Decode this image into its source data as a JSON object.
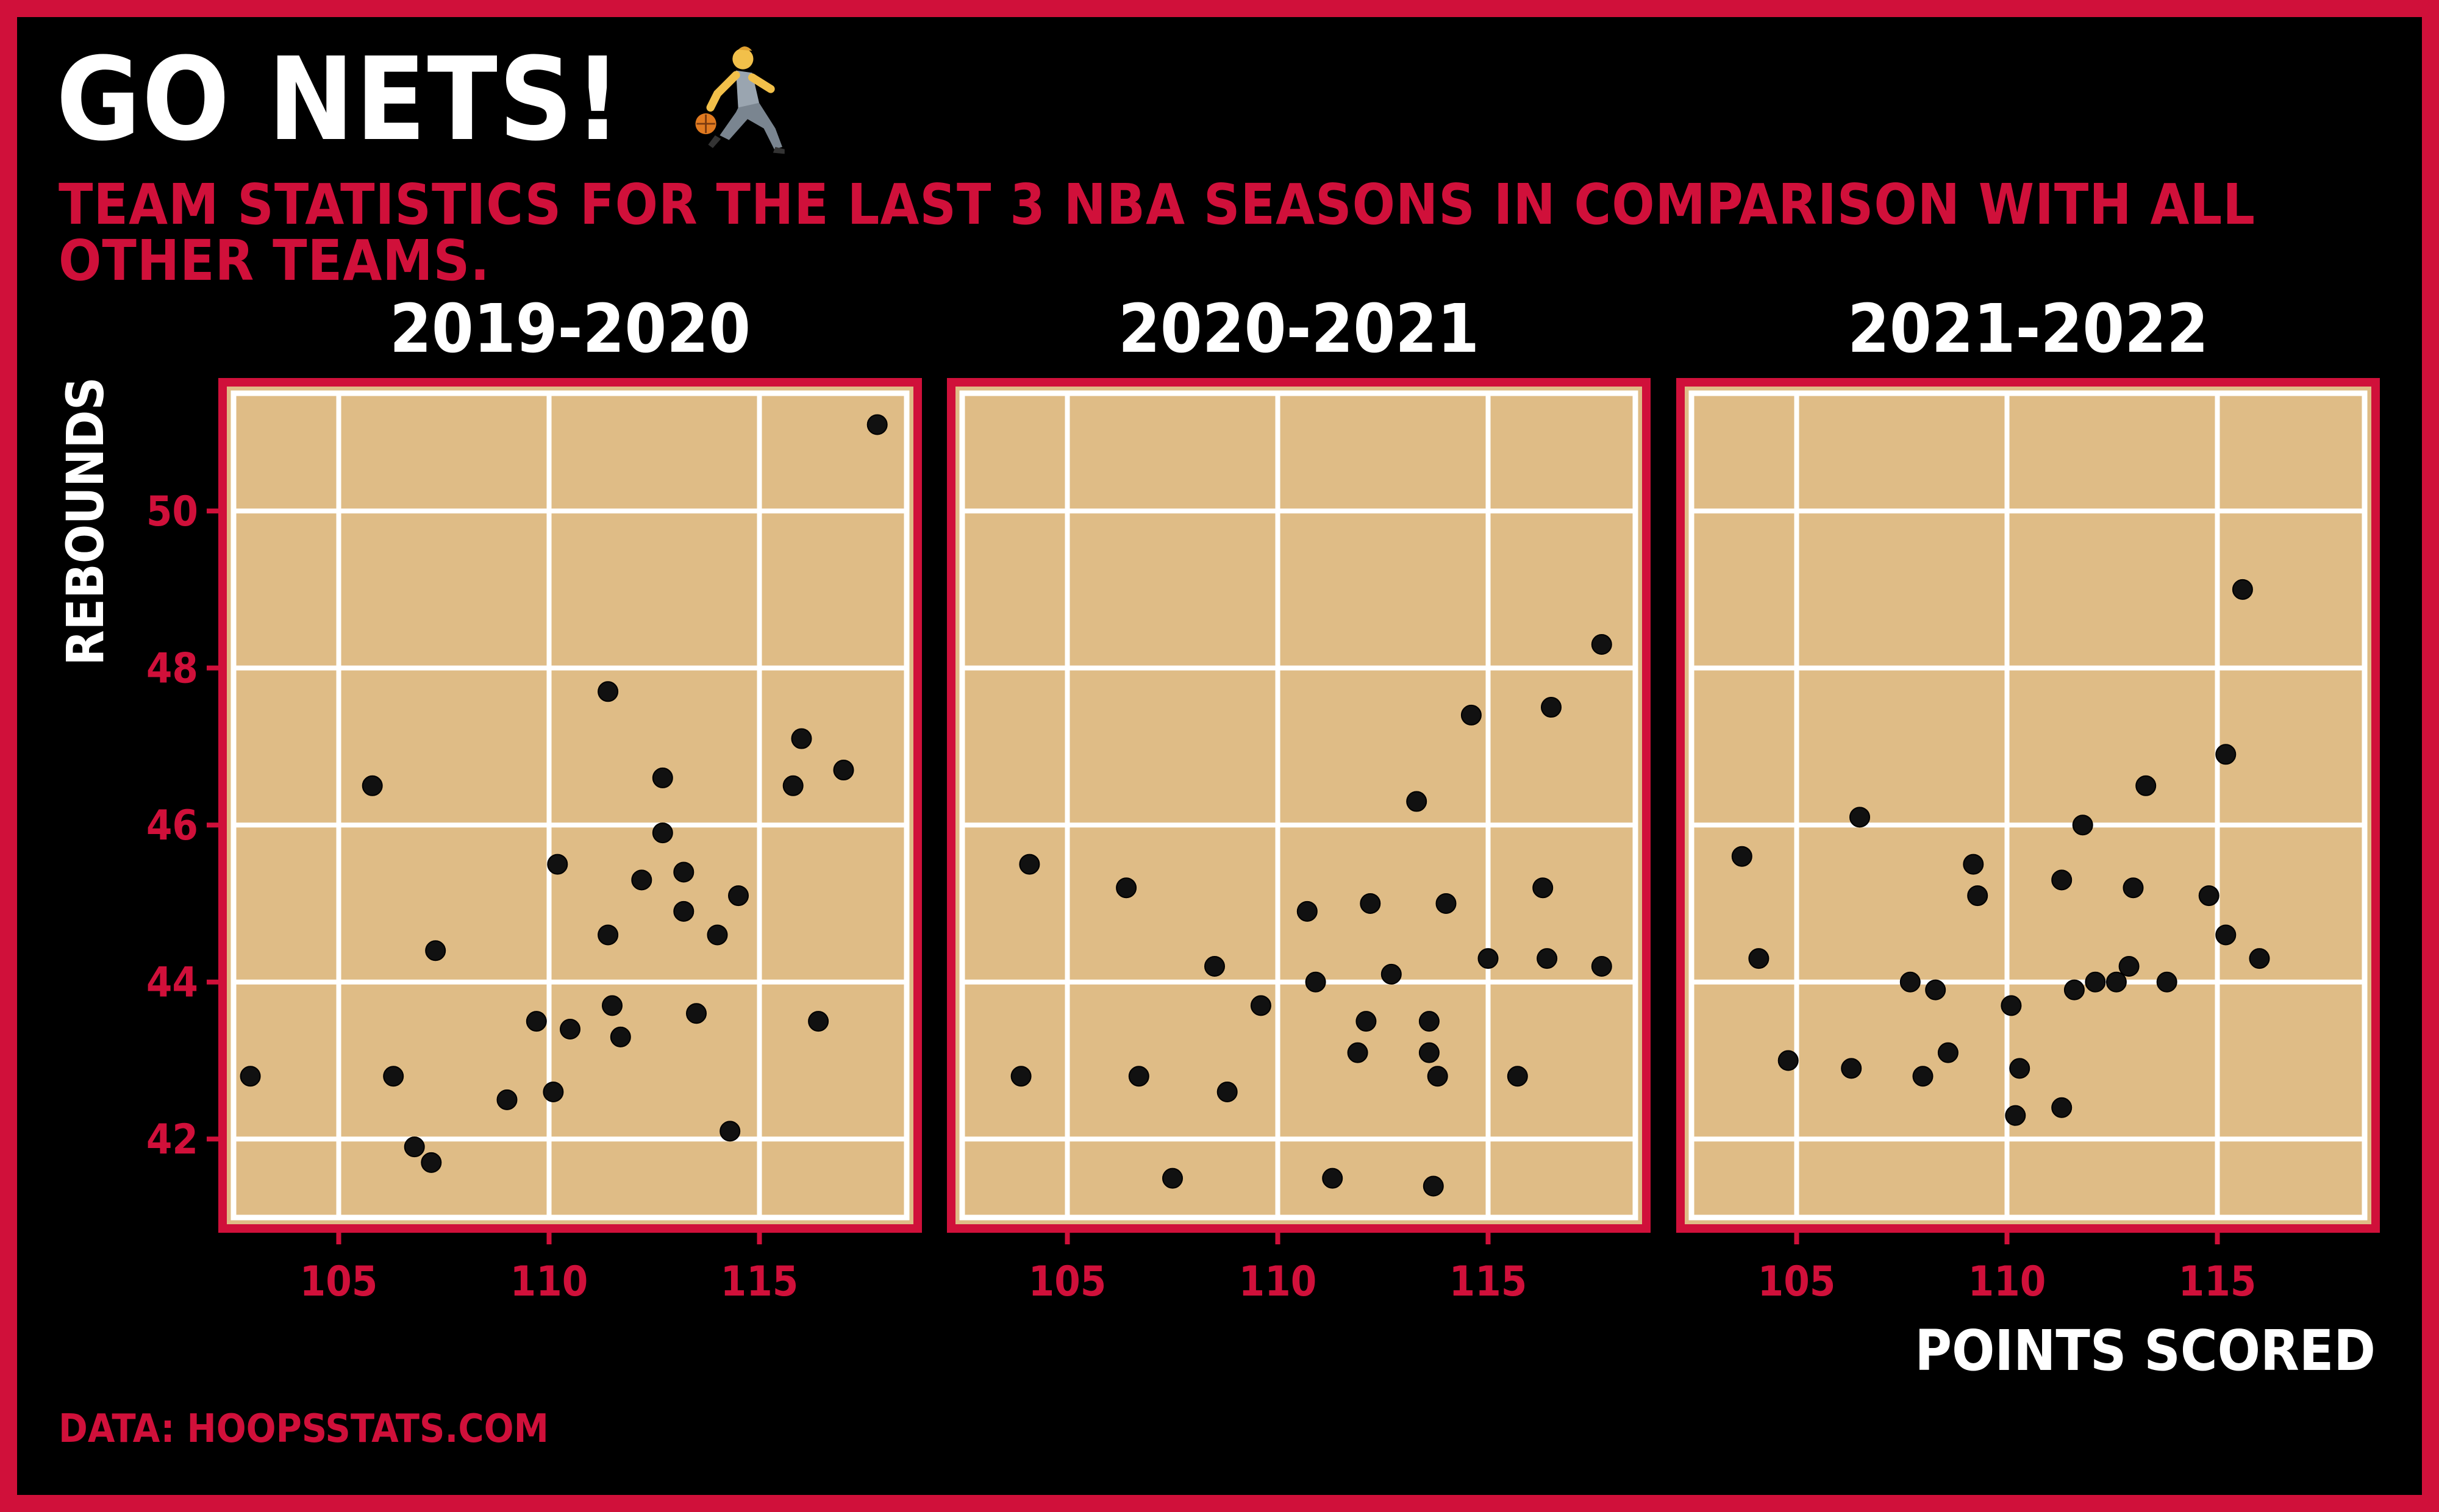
{
  "title": "GO NETS!",
  "subtitle": "TEAM STATISTICS FOR THE LAST 3 NBA SEASONS IN COMPARISON WITH ALL OTHER TEAMS.",
  "caption": "DATA: HOOPSSTATS.COM",
  "colors": {
    "frame": "#d0103a",
    "panel_bg": "#dfbc86",
    "grid": "#ffffff",
    "point": "#111111",
    "background": "#000000"
  },
  "icon": "basketball-player-icon",
  "chart_data": {
    "type": "scatter",
    "xlabel": "POINTS SCORED",
    "ylabel": "REBOUNDS",
    "xlim": [
      102.5,
      118.5
    ],
    "ylim": [
      41.0,
      51.5
    ],
    "xticks": [
      105,
      110,
      115
    ],
    "yticks": [
      42,
      44,
      46,
      48,
      50
    ],
    "grid": true,
    "panels": [
      {
        "label": "2019-2020",
        "points": [
          [
            102.9,
            42.8
          ],
          [
            105.8,
            46.5
          ],
          [
            106.3,
            42.8
          ],
          [
            106.8,
            41.9
          ],
          [
            107.2,
            41.7
          ],
          [
            107.3,
            44.4
          ],
          [
            109.0,
            42.5
          ],
          [
            109.7,
            43.5
          ],
          [
            110.1,
            42.6
          ],
          [
            110.2,
            45.5
          ],
          [
            110.5,
            43.4
          ],
          [
            111.4,
            47.7
          ],
          [
            111.4,
            44.6
          ],
          [
            111.5,
            43.7
          ],
          [
            111.7,
            43.3
          ],
          [
            112.2,
            45.3
          ],
          [
            112.7,
            46.6
          ],
          [
            112.7,
            45.9
          ],
          [
            113.2,
            45.4
          ],
          [
            113.2,
            44.9
          ],
          [
            113.5,
            43.6
          ],
          [
            114.0,
            44.6
          ],
          [
            114.3,
            42.1
          ],
          [
            114.5,
            45.1
          ],
          [
            115.8,
            46.5
          ],
          [
            116.0,
            47.1
          ],
          [
            116.4,
            43.5
          ],
          [
            117.0,
            46.7
          ],
          [
            117.8,
            51.1
          ]
        ]
      },
      {
        "label": "2020-2021",
        "points": [
          [
            103.9,
            42.8
          ],
          [
            104.1,
            45.5
          ],
          [
            106.4,
            45.2
          ],
          [
            106.7,
            42.8
          ],
          [
            107.5,
            41.5
          ],
          [
            108.5,
            44.2
          ],
          [
            108.8,
            42.6
          ],
          [
            109.6,
            43.7
          ],
          [
            110.7,
            44.9
          ],
          [
            110.9,
            44.0
          ],
          [
            111.3,
            41.5
          ],
          [
            111.9,
            43.1
          ],
          [
            112.1,
            43.5
          ],
          [
            112.2,
            45.0
          ],
          [
            112.7,
            44.1
          ],
          [
            113.3,
            46.3
          ],
          [
            113.6,
            43.5
          ],
          [
            113.6,
            43.1
          ],
          [
            113.8,
            42.8
          ],
          [
            113.7,
            41.4
          ],
          [
            114.0,
            45.0
          ],
          [
            114.6,
            47.4
          ],
          [
            115.0,
            44.3
          ],
          [
            115.7,
            42.8
          ],
          [
            116.3,
            45.2
          ],
          [
            116.4,
            44.3
          ],
          [
            116.5,
            47.5
          ],
          [
            117.7,
            48.3
          ],
          [
            117.7,
            44.2
          ]
        ]
      },
      {
        "label": "2021-2022",
        "points": [
          [
            103.7,
            45.6
          ],
          [
            104.1,
            44.3
          ],
          [
            104.8,
            43.0
          ],
          [
            106.3,
            42.9
          ],
          [
            106.5,
            46.1
          ],
          [
            107.7,
            44.0
          ],
          [
            108.0,
            42.8
          ],
          [
            108.3,
            43.9
          ],
          [
            108.6,
            43.1
          ],
          [
            109.2,
            45.5
          ],
          [
            109.3,
            45.1
          ],
          [
            110.1,
            43.7
          ],
          [
            110.3,
            42.9
          ],
          [
            110.2,
            42.3
          ],
          [
            111.3,
            45.3
          ],
          [
            111.3,
            42.4
          ],
          [
            111.6,
            43.9
          ],
          [
            111.8,
            46.0
          ],
          [
            112.1,
            44.0
          ],
          [
            112.6,
            44.0
          ],
          [
            112.9,
            44.2
          ],
          [
            113.0,
            45.2
          ],
          [
            113.3,
            46.5
          ],
          [
            113.8,
            44.0
          ],
          [
            114.8,
            45.1
          ],
          [
            115.2,
            46.9
          ],
          [
            115.2,
            44.6
          ],
          [
            115.6,
            49.0
          ],
          [
            116.0,
            44.3
          ]
        ]
      }
    ]
  }
}
